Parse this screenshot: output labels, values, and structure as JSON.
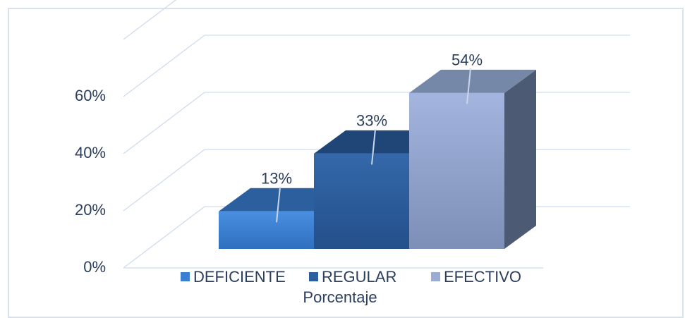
{
  "chart_data": {
    "type": "bar",
    "style": "3d-clustered",
    "categories": [
      "Porcentaje"
    ],
    "series": [
      {
        "name": "DEFICIENTE",
        "values": [
          13
        ],
        "label": "13%"
      },
      {
        "name": "REGULAR",
        "values": [
          33
        ],
        "label": "33%"
      },
      {
        "name": "EFECTIVO",
        "values": [
          54
        ],
        "label": "54%"
      }
    ],
    "xlabel": "Porcentaje",
    "ylabel": "",
    "ylim": [
      0,
      60
    ],
    "yticks": [
      "0%",
      "20%",
      "40%",
      "60%"
    ],
    "grid": true,
    "legend_position": "bottom",
    "colors": {
      "DEFICIENTE": "#3a7fd0",
      "REGULAR": "#2c5fa0",
      "EFECTIVO": "#9aacd4",
      "text": "#2b3e5c",
      "grid": "#cfdced"
    }
  }
}
